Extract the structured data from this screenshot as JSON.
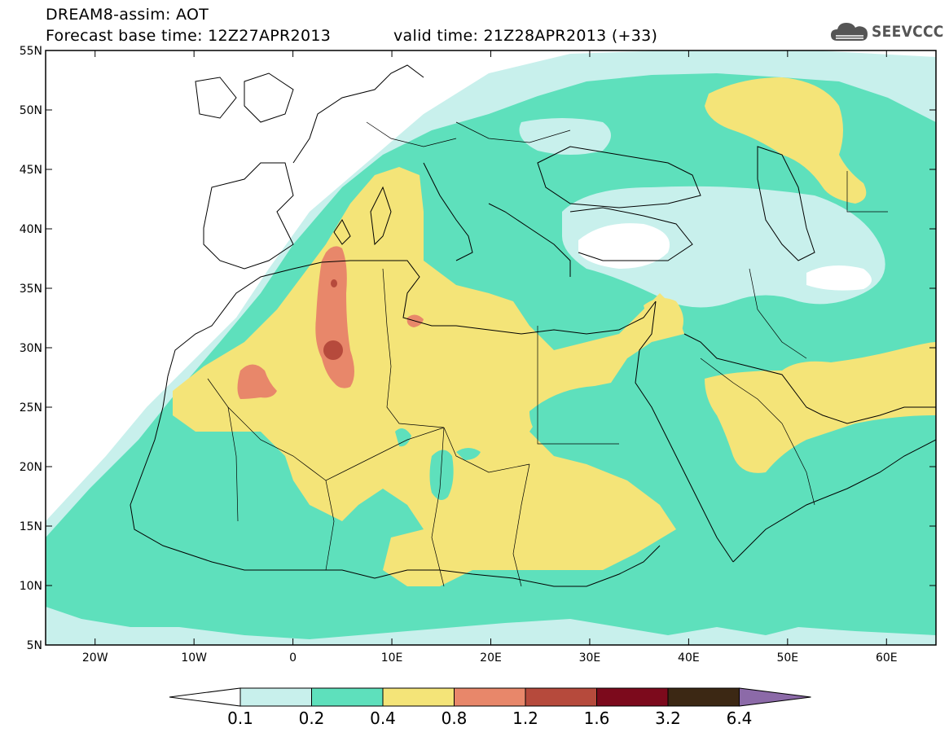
{
  "header": {
    "title_line1": "DREAM8-assim: AOT",
    "base_time": "Forecast base time: 12Z27APR2013",
    "valid_time": "valid time: 21Z28APR2013 (+33)"
  },
  "logo": {
    "text": "SEEVCCC",
    "icon": "cloud-icon",
    "color": "#555555"
  },
  "map": {
    "lat_labels": [
      "55N",
      "50N",
      "45N",
      "40N",
      "35N",
      "30N",
      "25N",
      "20N",
      "15N",
      "10N",
      "5N"
    ],
    "lon_labels": [
      "20W",
      "10W",
      "0",
      "10E",
      "20E",
      "30E",
      "40E",
      "50E",
      "60E"
    ],
    "lat_range": [
      5,
      55
    ],
    "lon_range": [
      -25,
      65
    ]
  },
  "legend": {
    "labels": [
      "0.1",
      "0.2",
      "0.4",
      "0.8",
      "1.2",
      "1.6",
      "3.2",
      "6.4"
    ],
    "colors": [
      "#c8f0ec",
      "#5ee0bc",
      "#f4e478",
      "#e8876a",
      "#b64a3c",
      "#7c0a1c",
      "#3c2814",
      "#8c6aa8"
    ]
  },
  "colors": {
    "background": "#ffffff",
    "level1": "#c8f0ec",
    "level2": "#5ee0bc",
    "level3": "#f4e478",
    "level4": "#e8876a",
    "level5": "#b64a3c"
  }
}
